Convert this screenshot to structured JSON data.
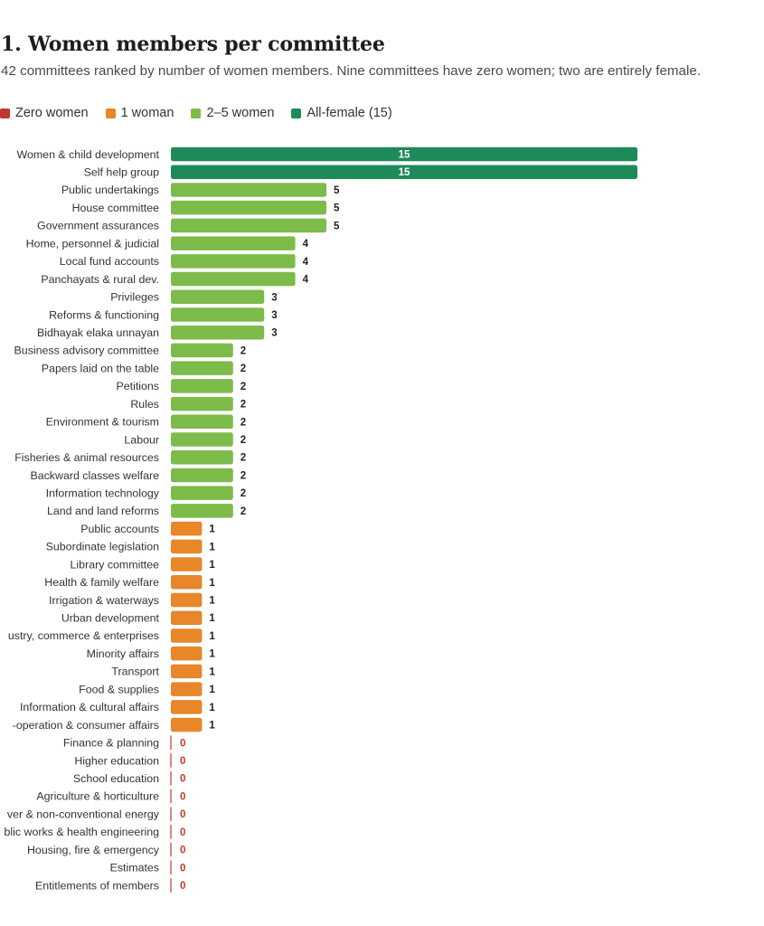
{
  "title": "1. Women members per committee",
  "subtitle": "42 committees ranked by number of women members. Nine committees have zero women; two are entirely female.",
  "legend": [
    {
      "label": "Zero women",
      "color": "#c0392b"
    },
    {
      "label": "1 woman",
      "color": "#e8862a"
    },
    {
      "label": "2–5 women",
      "color": "#7dbb4a"
    },
    {
      "label": "All-female (15)",
      "color": "#1e8a5a"
    }
  ],
  "chart_data": {
    "type": "bar",
    "orientation": "horizontal",
    "xlim": [
      0,
      15
    ],
    "grid": false,
    "legend_position": "top-left",
    "categories": [
      "Women & child development",
      "Self help group",
      "Public undertakings",
      "House committee",
      "Government assurances",
      "Home, personnel & judicial",
      "Local fund accounts",
      "Panchayats & rural dev.",
      "Privileges",
      "Reforms & functioning",
      "Bidhayak elaka unnayan",
      "Business advisory committee",
      "Papers laid on the table",
      "Petitions",
      "Rules",
      "Environment & tourism",
      "Labour",
      "Fisheries & animal resources",
      "Backward classes welfare",
      "Information technology",
      "Land and land reforms",
      "Public accounts",
      "Subordinate legislation",
      "Library committee",
      "Health & family welfare",
      "Irrigation & waterways",
      "Urban development",
      "ustry, commerce & enterprises",
      "Minority affairs",
      "Transport",
      "Food & supplies",
      "Information & cultural affairs",
      "-operation & consumer affairs",
      "Finance & planning",
      "Higher education",
      "School education",
      "Agriculture & horticulture",
      "ver & non-conventional energy",
      "blic works & health engineering",
      "Housing, fire & emergency",
      "Estimates",
      "Entitlements of members"
    ],
    "values": [
      15,
      15,
      5,
      5,
      5,
      4,
      4,
      4,
      3,
      3,
      3,
      2,
      2,
      2,
      2,
      2,
      2,
      2,
      2,
      2,
      2,
      1,
      1,
      1,
      1,
      1,
      1,
      1,
      1,
      1,
      1,
      1,
      1,
      0,
      0,
      0,
      0,
      0,
      0,
      0,
      0,
      0
    ]
  }
}
